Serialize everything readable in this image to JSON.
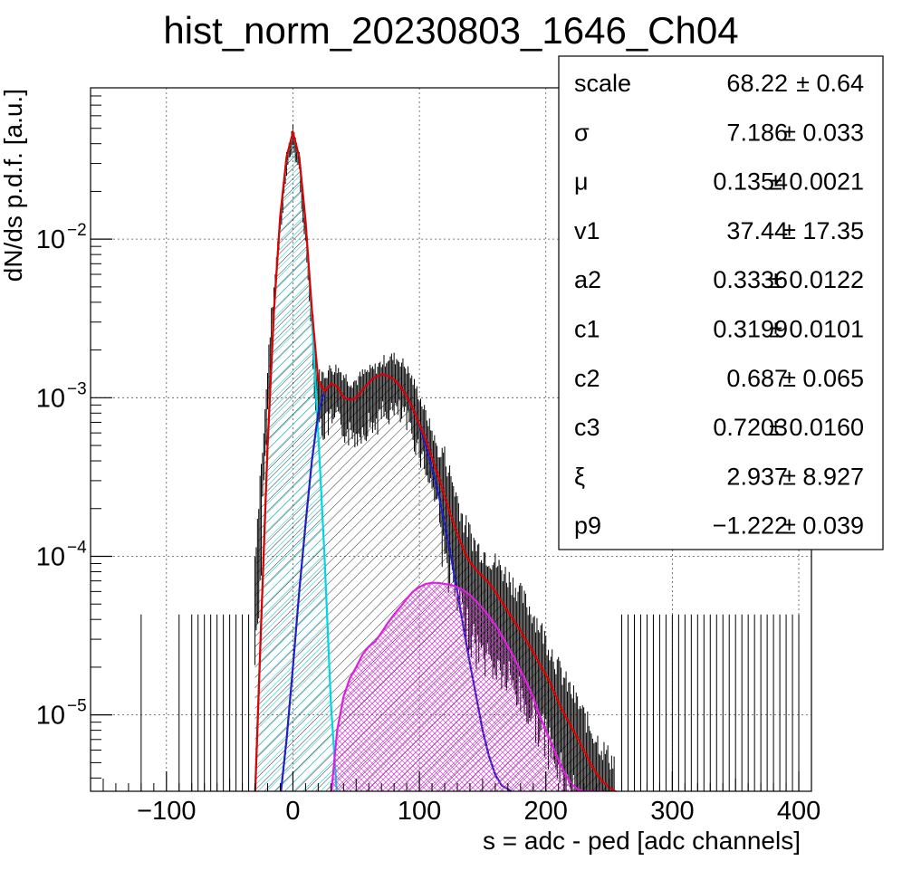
{
  "chart_data": {
    "type": "histogram",
    "title": "hist_norm_20230803_1646_Ch04",
    "xlabel": "s = adc - ped [adc channels]",
    "ylabel": "dN/ds p.d.f. [a.u.]",
    "x_range": [
      -160,
      410
    ],
    "y_range": [
      3.3e-06,
      0.09
    ],
    "y_scale": "log",
    "grid": true,
    "x_ticks": [
      {
        "value": -100,
        "label": "−100"
      },
      {
        "value": 0,
        "label": "0"
      },
      {
        "value": 100,
        "label": "100"
      },
      {
        "value": 200,
        "label": "200"
      },
      {
        "value": 300,
        "label": "300"
      },
      {
        "value": 400,
        "label": "400"
      }
    ],
    "y_ticks": [
      {
        "value": 1e-05,
        "base": "10",
        "exp": "−5"
      },
      {
        "value": 0.0001,
        "base": "10",
        "exp": "−4"
      },
      {
        "value": 0.001,
        "base": "10",
        "exp": "−3"
      },
      {
        "value": 0.01,
        "base": "10",
        "exp": "−2"
      }
    ],
    "histogram": {
      "color": "#000000",
      "x": [
        -30,
        -25,
        -20,
        -15,
        -10,
        -5,
        0,
        5,
        10,
        15,
        20,
        25,
        30,
        35,
        40,
        45,
        50,
        55,
        60,
        65,
        70,
        75,
        80,
        85,
        90,
        95,
        100,
        105,
        110,
        115,
        120,
        125,
        130,
        135,
        140,
        145,
        150,
        155,
        160,
        165,
        170,
        175,
        180,
        185,
        190,
        195,
        200,
        205,
        210,
        215,
        220,
        225,
        230,
        235,
        240,
        245,
        250,
        255
      ],
      "y": [
        6e-05,
        0.00025,
        0.0012,
        0.0045,
        0.014,
        0.032,
        0.047,
        0.032,
        0.011,
        0.0032,
        0.0011,
        0.0011,
        0.0012,
        0.0012,
        0.0011,
        0.001,
        0.001,
        0.0011,
        0.00115,
        0.0012,
        0.0013,
        0.0014,
        0.0014,
        0.00135,
        0.0012,
        0.001,
        0.0008,
        0.00062,
        0.00048,
        0.00036,
        0.00026,
        0.00019,
        0.00014,
        0.0001,
        8.5e-05,
        7e-05,
        6.5e-05,
        6e-05,
        5.5e-05,
        5e-05,
        4.5e-05,
        4e-05,
        3.5e-05,
        3e-05,
        2.6e-05,
        2.2e-05,
        1.8e-05,
        1.5e-05,
        1.2e-05,
        1e-05,
        8.5e-06,
        7.2e-06,
        6e-06,
        5e-06,
        4.3e-06,
        3.7e-06,
        3.3e-06,
        3e-06
      ],
      "sparse_entries_x": [
        -120,
        -90,
        -80,
        -75,
        -70,
        -65,
        -60,
        -55,
        -50,
        -45,
        -40,
        -35,
        260,
        265,
        270,
        275,
        280,
        285,
        290,
        295,
        300,
        305,
        310,
        315,
        320,
        325,
        330,
        335,
        340,
        345,
        350,
        355,
        360,
        365,
        370,
        375,
        380,
        385,
        390,
        395,
        400
      ],
      "sparse_entries_y": 4.3e-05
    },
    "series": [
      {
        "color": "#00d8e0",
        "fill_hatch": true,
        "x": [
          -30,
          -25,
          -20,
          -15,
          -10,
          -5,
          0,
          5,
          10,
          15,
          20,
          25,
          30,
          35
        ],
        "y": [
          3e-06,
          4e-05,
          0.0005,
          0.0035,
          0.014,
          0.033,
          0.047,
          0.033,
          0.013,
          0.0032,
          0.0006,
          0.0001,
          1.2e-05,
          3e-06
        ]
      },
      {
        "color": "#2020c0",
        "x": [
          -10,
          -5,
          0,
          5,
          10,
          15,
          20,
          25,
          30,
          35,
          40,
          45,
          50,
          55,
          60,
          65,
          70,
          75,
          80,
          85,
          90,
          95,
          100,
          105,
          110,
          115,
          120,
          125,
          130,
          135,
          140,
          145,
          150,
          155,
          160,
          165,
          170,
          175
        ],
        "y": [
          3e-06,
          7e-06,
          2e-05,
          6e-05,
          0.00016,
          0.0004,
          0.0008,
          0.0011,
          0.00123,
          0.00118,
          0.001,
          0.00097,
          0.001,
          0.00112,
          0.00125,
          0.00135,
          0.0014,
          0.00138,
          0.0013,
          0.00118,
          0.00102,
          0.00085,
          0.00067,
          0.0005,
          0.00036,
          0.00025,
          0.00016,
          0.0001,
          6e-05,
          3.5e-05,
          2.1e-05,
          1.3e-05,
          8e-06,
          5.5e-06,
          4.2e-06,
          3.6e-06,
          3.4e-06,
          3.2e-06
        ]
      },
      {
        "color": "#e020e0",
        "fill_hatch": true,
        "x": [
          30,
          35,
          40,
          45,
          50,
          55,
          60,
          65,
          70,
          75,
          80,
          85,
          90,
          95,
          100,
          105,
          110,
          115,
          120,
          125,
          130,
          135,
          140,
          145,
          150,
          155,
          160,
          165,
          170,
          175,
          180,
          185,
          190,
          195,
          200,
          205,
          210,
          215,
          220,
          225,
          230,
          235,
          240,
          245
        ],
        "y": [
          3e-06,
          8e-06,
          1.3e-05,
          1.7e-05,
          2e-05,
          2.4e-05,
          2.7e-05,
          2.9e-05,
          3.3e-05,
          3.8e-05,
          4.3e-05,
          4.8e-05,
          5.4e-05,
          6e-05,
          6.4e-05,
          6.7e-05,
          6.8e-05,
          6.8e-05,
          6.7e-05,
          6.6e-05,
          6.4e-05,
          6.1e-05,
          5.7e-05,
          5.2e-05,
          4.7e-05,
          4.2e-05,
          3.7e-05,
          3.2e-05,
          2.7e-05,
          2.3e-05,
          1.9e-05,
          1.6e-05,
          1.3e-05,
          1e-05,
          8e-06,
          6.5e-06,
          5.2e-06,
          4.3e-06,
          3.7e-06,
          3.4e-06,
          3.3e-06,
          3.3e-06,
          3.3e-06,
          3.3e-06
        ]
      },
      {
        "color": "#e00000",
        "x": [
          -30,
          -25,
          -20,
          -15,
          -10,
          -5,
          0,
          5,
          10,
          15,
          20,
          25,
          30,
          35,
          40,
          45,
          50,
          55,
          60,
          65,
          70,
          75,
          80,
          85,
          90,
          95,
          100,
          105,
          110,
          115,
          120,
          125,
          130,
          135,
          140,
          145,
          150,
          155,
          160,
          165,
          170,
          175,
          180,
          185,
          190,
          195,
          200,
          205,
          210,
          215,
          220,
          225,
          230,
          235,
          240,
          245,
          250,
          255,
          260
        ],
        "y": [
          3e-06,
          4e-05,
          0.0005,
          0.0035,
          0.014,
          0.033,
          0.047,
          0.033,
          0.013,
          0.0036,
          0.0013,
          0.0011,
          0.00123,
          0.00118,
          0.001,
          0.00097,
          0.001,
          0.00112,
          0.00125,
          0.00135,
          0.0014,
          0.00138,
          0.0013,
          0.00118,
          0.00102,
          0.00085,
          0.00068,
          0.00055,
          0.00042,
          0.00032,
          0.00024,
          0.00018,
          0.00014,
          0.00011,
          9.2e-05,
          8.2e-05,
          7.5e-05,
          6.8e-05,
          6e-05,
          5.2e-05,
          4.5e-05,
          3.9e-05,
          3.4e-05,
          2.9e-05,
          2.5e-05,
          2.1e-05,
          1.8e-05,
          1.5e-05,
          1.2e-05,
          1e-05,
          8.5e-06,
          7.2e-06,
          6e-06,
          5e-06,
          4.3e-06,
          3.8e-06,
          3.5e-06,
          3.3e-06,
          3.2e-06
        ]
      }
    ],
    "stats": [
      {
        "name": "scale",
        "value": "68.22",
        "error": "± 0.64"
      },
      {
        "name": "σ",
        "value": "7.186",
        "error": "± 0.033"
      },
      {
        "name": "μ",
        "value": "0.1354",
        "error": "± 0.0021"
      },
      {
        "name": "v1",
        "value": "37.44",
        "error": "± 17.35"
      },
      {
        "name": "a2",
        "value": "0.3336",
        "error": "± 0.0122"
      },
      {
        "name": "c1",
        "value": "0.3199",
        "error": "± 0.0101"
      },
      {
        "name": "c2",
        "value": "0.687",
        "error": "± 0.065"
      },
      {
        "name": "c3",
        "value": "0.7203",
        "error": "± 0.0160"
      },
      {
        "name": "ξ",
        "value": "2.937",
        "error": "± 8.927"
      },
      {
        "name": "p9",
        "value": "−1.222",
        "error": "± 0.039"
      }
    ]
  }
}
